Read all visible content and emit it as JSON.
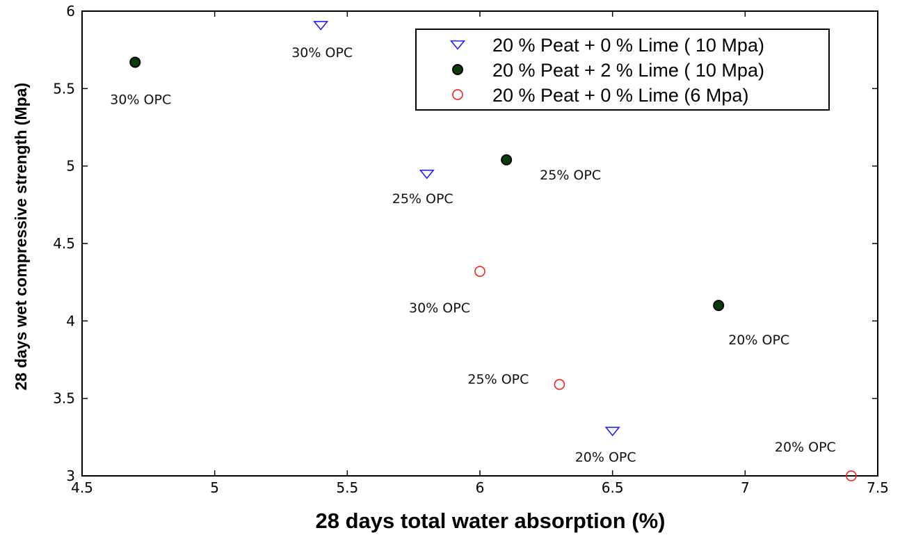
{
  "chart_data": {
    "type": "scatter",
    "xlabel": "28 days total water absorption (%)",
    "ylabel": "28 days wet compressive strength (Mpa)",
    "xlim": [
      4.5,
      7.5
    ],
    "ylim": [
      3,
      6
    ],
    "xticks": [
      4.5,
      5,
      5.5,
      6,
      6.5,
      7,
      7.5
    ],
    "yticks": [
      3,
      3.5,
      4,
      4.5,
      5,
      5.5,
      6
    ],
    "xtick_labels": [
      "4.5",
      "5",
      "5.5",
      "6",
      "6.5",
      "7",
      "7.5"
    ],
    "ytick_labels": [
      "3",
      "3.5",
      "4",
      "4.5",
      "5",
      "5.5",
      "6"
    ],
    "grid": false,
    "legend_position": "top-right",
    "series": [
      {
        "name": "20 % Peat + 0 % Lime ( 10 Mpa)",
        "marker": "triangle-down",
        "color": "#2222ee",
        "filled": false,
        "points": [
          {
            "x": 5.4,
            "y": 5.91,
            "label": "30% OPC"
          },
          {
            "x": 5.8,
            "y": 4.95,
            "label": "25% OPC"
          },
          {
            "x": 6.5,
            "y": 3.29,
            "label": "20% OPC"
          }
        ]
      },
      {
        "name": "20 % Peat + 2 % Lime ( 10 Mpa)",
        "marker": "circle",
        "color": "#000000",
        "fill": "#0a3a0a",
        "filled": true,
        "points": [
          {
            "x": 4.7,
            "y": 5.67,
            "label": "30% OPC"
          },
          {
            "x": 6.1,
            "y": 5.04,
            "label": "25% OPC"
          },
          {
            "x": 6.9,
            "y": 4.1,
            "label": "20% OPC"
          }
        ]
      },
      {
        "name": "20 % Peat + 0 % Lime (6 Mpa)",
        "marker": "circle",
        "color": "#ee2222",
        "filled": false,
        "points": [
          {
            "x": 6.0,
            "y": 4.32,
            "label": "30% OPC"
          },
          {
            "x": 6.3,
            "y": 3.59,
            "label": "25% OPC"
          },
          {
            "x": 7.4,
            "y": 3.0,
            "label": "20% OPC"
          }
        ]
      }
    ]
  }
}
